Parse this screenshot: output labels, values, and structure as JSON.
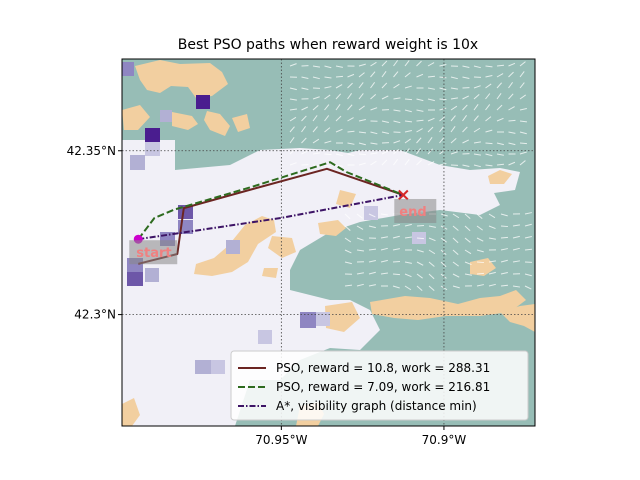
{
  "chart_data": {
    "type": "line",
    "title": "Best PSO paths when reward weight is 10x",
    "xlabel": "",
    "ylabel": "",
    "xlim": [
      -70.999,
      -70.872
    ],
    "ylim": [
      42.266,
      42.378
    ],
    "x_ticks": [
      {
        "value": -70.95,
        "label": "70.95°W"
      },
      {
        "value": -70.9,
        "label": "70.9°W"
      }
    ],
    "y_ticks": [
      {
        "value": 42.35,
        "label": "42.35°N"
      },
      {
        "value": 42.3,
        "label": "42.3°N"
      }
    ],
    "grid": true,
    "legend_position": "lower right",
    "series": [
      {
        "name": "PSO, reward = 10.8, work = 288.31",
        "color": "#6b2522",
        "style": "solid",
        "points": [
          [
            -70.994,
            42.3155
          ],
          [
            -70.982,
            42.3185
          ],
          [
            -70.98,
            42.3325
          ],
          [
            -70.96,
            42.338
          ],
          [
            -70.936,
            42.3445
          ],
          [
            -70.9125,
            42.3365
          ]
        ]
      },
      {
        "name": "PSO, reward = 7.09, work = 216.81",
        "color": "#2e6b1f",
        "style": "dashed",
        "points": [
          [
            -70.994,
            42.323
          ],
          [
            -70.989,
            42.3295
          ],
          [
            -70.983,
            42.332
          ],
          [
            -70.959,
            42.339
          ],
          [
            -70.935,
            42.3465
          ],
          [
            -70.93,
            42.3435
          ],
          [
            -70.9125,
            42.3365
          ]
        ]
      },
      {
        "name": "A*, visibility graph (distance min)",
        "color": "#3d1466",
        "style": "dashdot",
        "points": [
          [
            -70.994,
            42.323
          ],
          [
            -70.95,
            42.3295
          ],
          [
            -70.9125,
            42.3365
          ]
        ]
      }
    ],
    "markers": [
      {
        "label": "start",
        "x": -70.994,
        "y": 42.323,
        "color": "#cc00cc",
        "shape": "circle"
      },
      {
        "label": "end",
        "x": -70.9125,
        "y": 42.3365,
        "color": "#d62728",
        "shape": "x"
      }
    ],
    "colors": {
      "water": "#97bdb6",
      "land": "#f2cfa0",
      "density_light": "#f1f0f7",
      "density_mid": "#b2b0d4",
      "density_dark": "#4a1d8f",
      "current_arrows": "#ffffff"
    }
  }
}
